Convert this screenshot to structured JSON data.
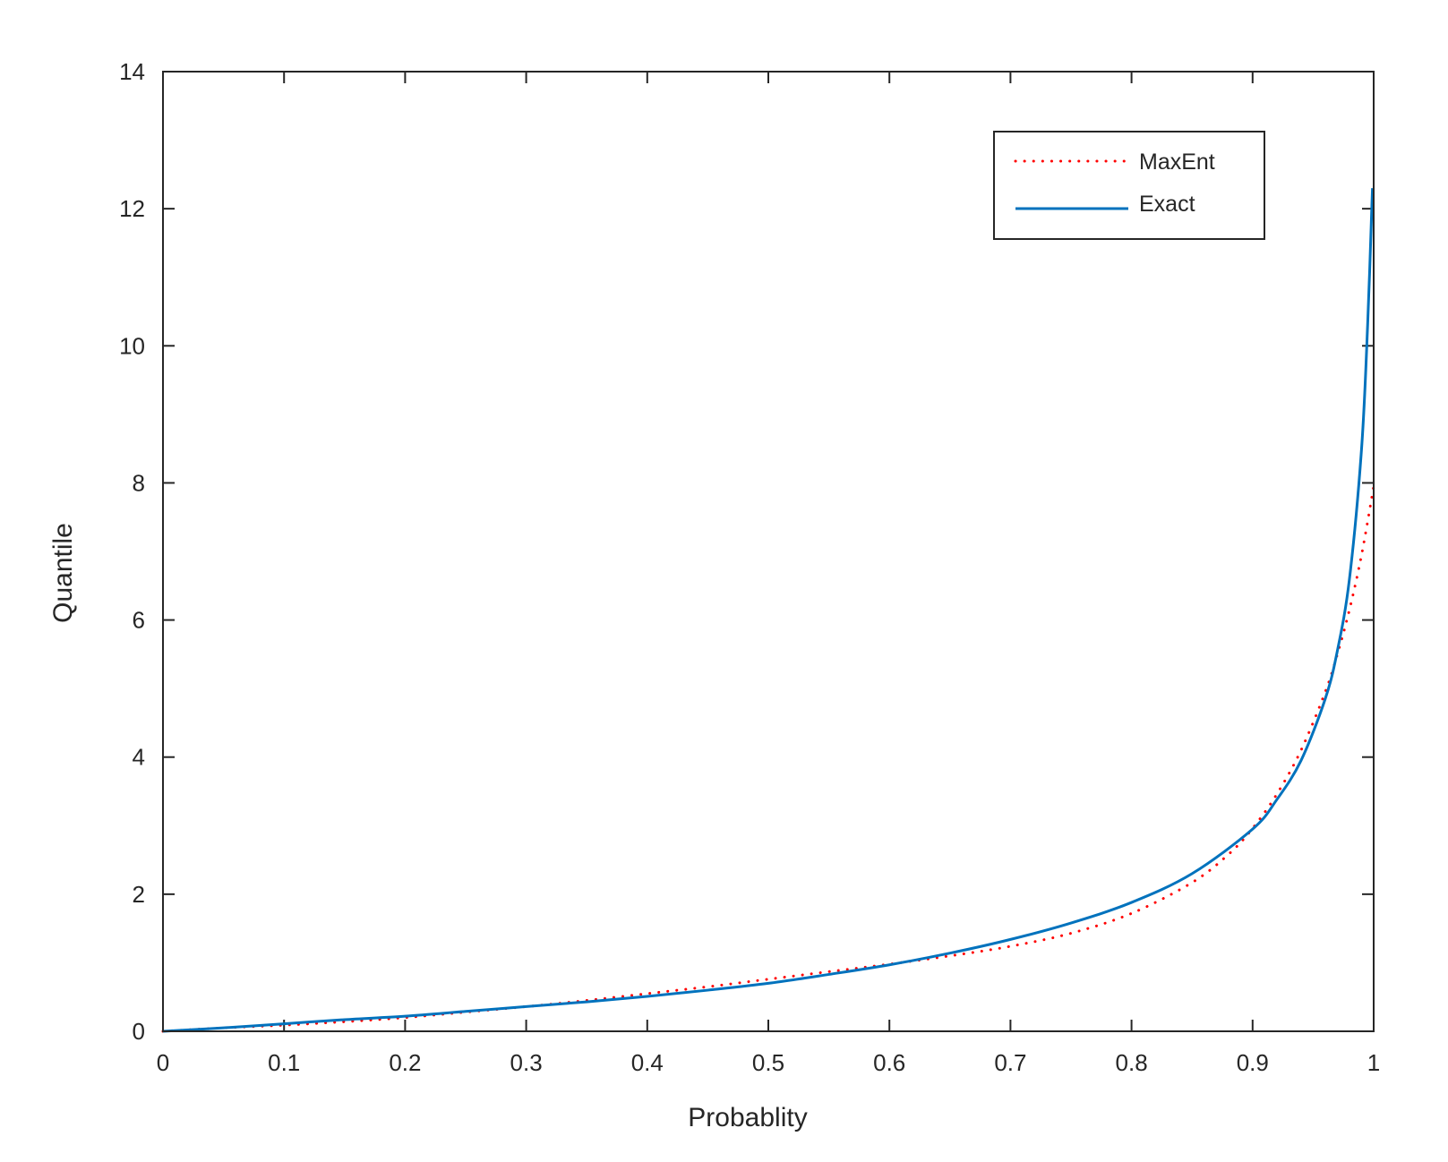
{
  "chart_data": {
    "type": "line",
    "title": "",
    "xlabel": "Probablity",
    "ylabel": "Quantile",
    "xlim": [
      0,
      1
    ],
    "ylim": [
      0,
      14
    ],
    "x_ticks": [
      0,
      0.1,
      0.2,
      0.3,
      0.4,
      0.5,
      0.6,
      0.7,
      0.8,
      0.9,
      1
    ],
    "x_tick_labels": [
      "0",
      "0.1",
      "0.2",
      "0.3",
      "0.4",
      "0.5",
      "0.6",
      "0.7",
      "0.8",
      "0.9",
      "1"
    ],
    "y_ticks": [
      0,
      2,
      4,
      6,
      8,
      10,
      12,
      14
    ],
    "y_tick_labels": [
      "0",
      "2",
      "4",
      "6",
      "8",
      "10",
      "12",
      "14"
    ],
    "grid": false,
    "legend_position": "top-right",
    "series": [
      {
        "name": "MaxEnt",
        "style": "dotted",
        "color": "#ff0000",
        "x": [
          0,
          0.05,
          0.1,
          0.15,
          0.2,
          0.25,
          0.3,
          0.35,
          0.4,
          0.45,
          0.5,
          0.55,
          0.6,
          0.65,
          0.7,
          0.75,
          0.8,
          0.85,
          0.88,
          0.9,
          0.92,
          0.94,
          0.96,
          0.97,
          0.98,
          0.99,
          1.0
        ],
        "y": [
          0,
          0.05,
          0.09,
          0.14,
          0.2,
          0.28,
          0.36,
          0.45,
          0.55,
          0.65,
          0.76,
          0.87,
          0.98,
          1.1,
          1.24,
          1.43,
          1.72,
          2.17,
          2.58,
          2.96,
          3.46,
          4.1,
          4.95,
          5.5,
          6.15,
          6.95,
          7.95
        ]
      },
      {
        "name": "Exact",
        "style": "solid",
        "color": "#0072bd",
        "x": [
          0,
          0.05,
          0.1,
          0.15,
          0.2,
          0.25,
          0.3,
          0.35,
          0.4,
          0.45,
          0.5,
          0.55,
          0.6,
          0.65,
          0.7,
          0.75,
          0.8,
          0.85,
          0.9,
          0.92,
          0.94,
          0.96,
          0.97,
          0.98,
          0.99,
          0.995,
          0.999
        ],
        "y": [
          0,
          0.05,
          0.11,
          0.17,
          0.22,
          0.29,
          0.36,
          0.43,
          0.51,
          0.6,
          0.7,
          0.83,
          0.97,
          1.14,
          1.34,
          1.58,
          1.88,
          2.3,
          2.95,
          3.38,
          3.95,
          4.85,
          5.55,
          6.6,
          8.5,
          10.3,
          12.3
        ]
      }
    ]
  }
}
